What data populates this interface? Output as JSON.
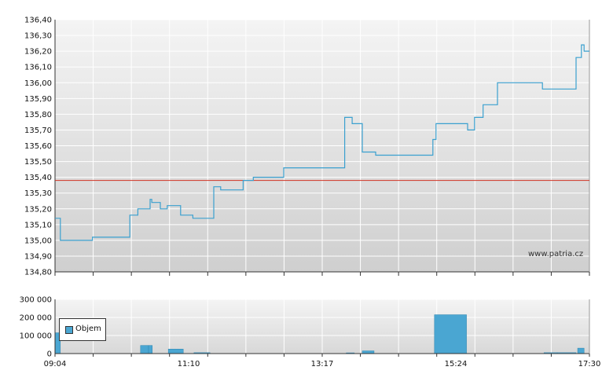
{
  "chart_data": [
    {
      "type": "line",
      "x_labels": [
        "09:04",
        "11:10",
        "13:17",
        "15:24",
        "17:30"
      ],
      "ylim": [
        134.8,
        136.4
      ],
      "y_ticks": [
        "134,80",
        "134,90",
        "135,00",
        "135,10",
        "135,20",
        "135,30",
        "135,40",
        "135,50",
        "135,60",
        "135,70",
        "135,80",
        "135,90",
        "136,00",
        "136,10",
        "136,20",
        "136,30",
        "136,40"
      ],
      "reference_line": 135.38,
      "line_color": "#3aa0cf",
      "reference_color": "#d03020",
      "points": [
        [
          0.0,
          135.14
        ],
        [
          0.01,
          135.14
        ],
        [
          0.01,
          135.0
        ],
        [
          0.07,
          135.0
        ],
        [
          0.07,
          135.02
        ],
        [
          0.14,
          135.02
        ],
        [
          0.14,
          135.16
        ],
        [
          0.155,
          135.16
        ],
        [
          0.155,
          135.2
        ],
        [
          0.178,
          135.2
        ],
        [
          0.178,
          135.26
        ],
        [
          0.181,
          135.26
        ],
        [
          0.181,
          135.24
        ],
        [
          0.197,
          135.24
        ],
        [
          0.197,
          135.2
        ],
        [
          0.21,
          135.2
        ],
        [
          0.21,
          135.22
        ],
        [
          0.235,
          135.22
        ],
        [
          0.235,
          135.16
        ],
        [
          0.258,
          135.16
        ],
        [
          0.258,
          135.14
        ],
        [
          0.297,
          135.14
        ],
        [
          0.297,
          135.34
        ],
        [
          0.31,
          135.34
        ],
        [
          0.31,
          135.32
        ],
        [
          0.352,
          135.32
        ],
        [
          0.352,
          135.38
        ],
        [
          0.371,
          135.38
        ],
        [
          0.371,
          135.4
        ],
        [
          0.428,
          135.4
        ],
        [
          0.428,
          135.46
        ],
        [
          0.542,
          135.46
        ],
        [
          0.542,
          135.78
        ],
        [
          0.556,
          135.78
        ],
        [
          0.556,
          135.74
        ],
        [
          0.575,
          135.74
        ],
        [
          0.575,
          135.56
        ],
        [
          0.6,
          135.56
        ],
        [
          0.6,
          135.54
        ],
        [
          0.707,
          135.54
        ],
        [
          0.707,
          135.64
        ],
        [
          0.713,
          135.64
        ],
        [
          0.713,
          135.74
        ],
        [
          0.772,
          135.74
        ],
        [
          0.772,
          135.7
        ],
        [
          0.785,
          135.7
        ],
        [
          0.785,
          135.78
        ],
        [
          0.801,
          135.78
        ],
        [
          0.801,
          135.86
        ],
        [
          0.828,
          135.86
        ],
        [
          0.828,
          136.0
        ],
        [
          0.912,
          136.0
        ],
        [
          0.912,
          135.96
        ],
        [
          0.975,
          135.96
        ],
        [
          0.975,
          136.16
        ],
        [
          0.985,
          136.16
        ],
        [
          0.985,
          136.24
        ],
        [
          0.99,
          136.24
        ],
        [
          0.99,
          136.2
        ],
        [
          1.0,
          136.2
        ]
      ]
    },
    {
      "type": "bar",
      "series": [
        {
          "name": "Objem"
        }
      ],
      "ylim": [
        0,
        300000
      ],
      "y_ticks": [
        "0",
        "100 000",
        "200 000",
        "300 000"
      ],
      "bar_color": "#4aa6d2",
      "bars": [
        [
          0.0,
          0.01,
          115000
        ],
        [
          0.16,
          0.175,
          45000
        ],
        [
          0.175,
          0.182,
          45000
        ],
        [
          0.212,
          0.24,
          25000
        ],
        [
          0.26,
          0.29,
          5000
        ],
        [
          0.545,
          0.56,
          4000
        ],
        [
          0.575,
          0.597,
          15000
        ],
        [
          0.71,
          0.77,
          215000
        ],
        [
          0.915,
          0.94,
          5000
        ],
        [
          0.94,
          0.975,
          5000
        ],
        [
          0.978,
          0.99,
          30000
        ]
      ]
    }
  ],
  "legend_label": "Objem",
  "watermark": "www.patria.cz"
}
